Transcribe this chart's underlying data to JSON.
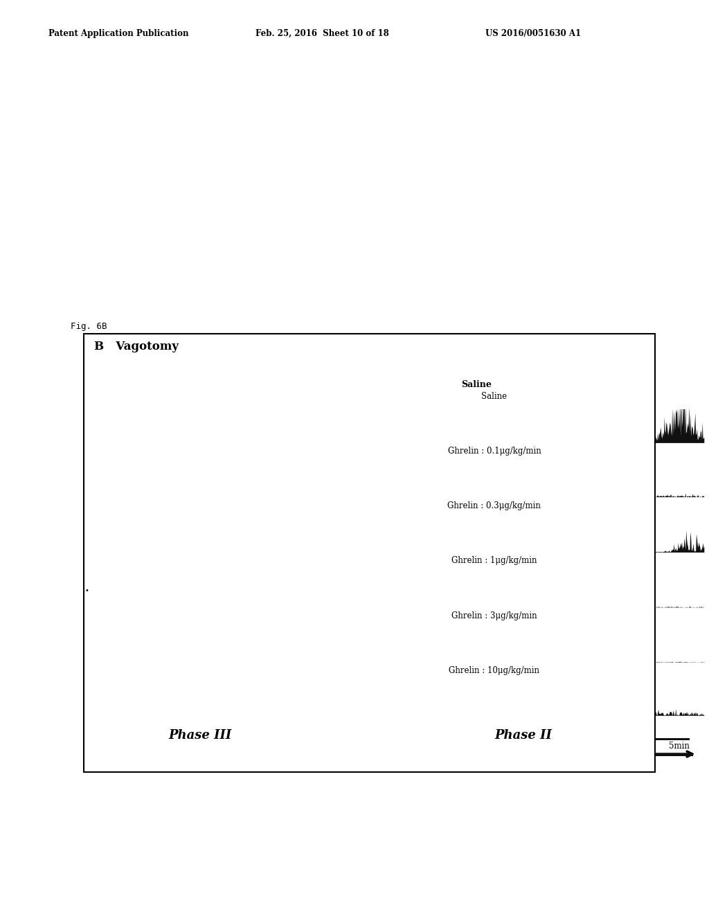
{
  "header_left": "Patent Application Publication",
  "header_mid": "Feb. 25, 2016  Sheet 10 of 18",
  "header_right": "US 2016/0051630 A1",
  "fig_label": "Fig. 6B",
  "panel_title": "B   Vagotomy",
  "phase3_label": "Phase III",
  "phase2_label": "Phase II",
  "labels_right": [
    "Saline",
    "Ghrelin : 0.1μg/kg/min",
    "Ghrelin : 0.3μg/kg/min",
    "Ghrelin : 1μg/kg/min",
    "Ghrelin : 3μg/kg/min",
    "Ghrelin : 10μg/kg/min"
  ],
  "scale_bar_label": "5min",
  "bg_color": "#ffffff",
  "trace_color": "#111111"
}
